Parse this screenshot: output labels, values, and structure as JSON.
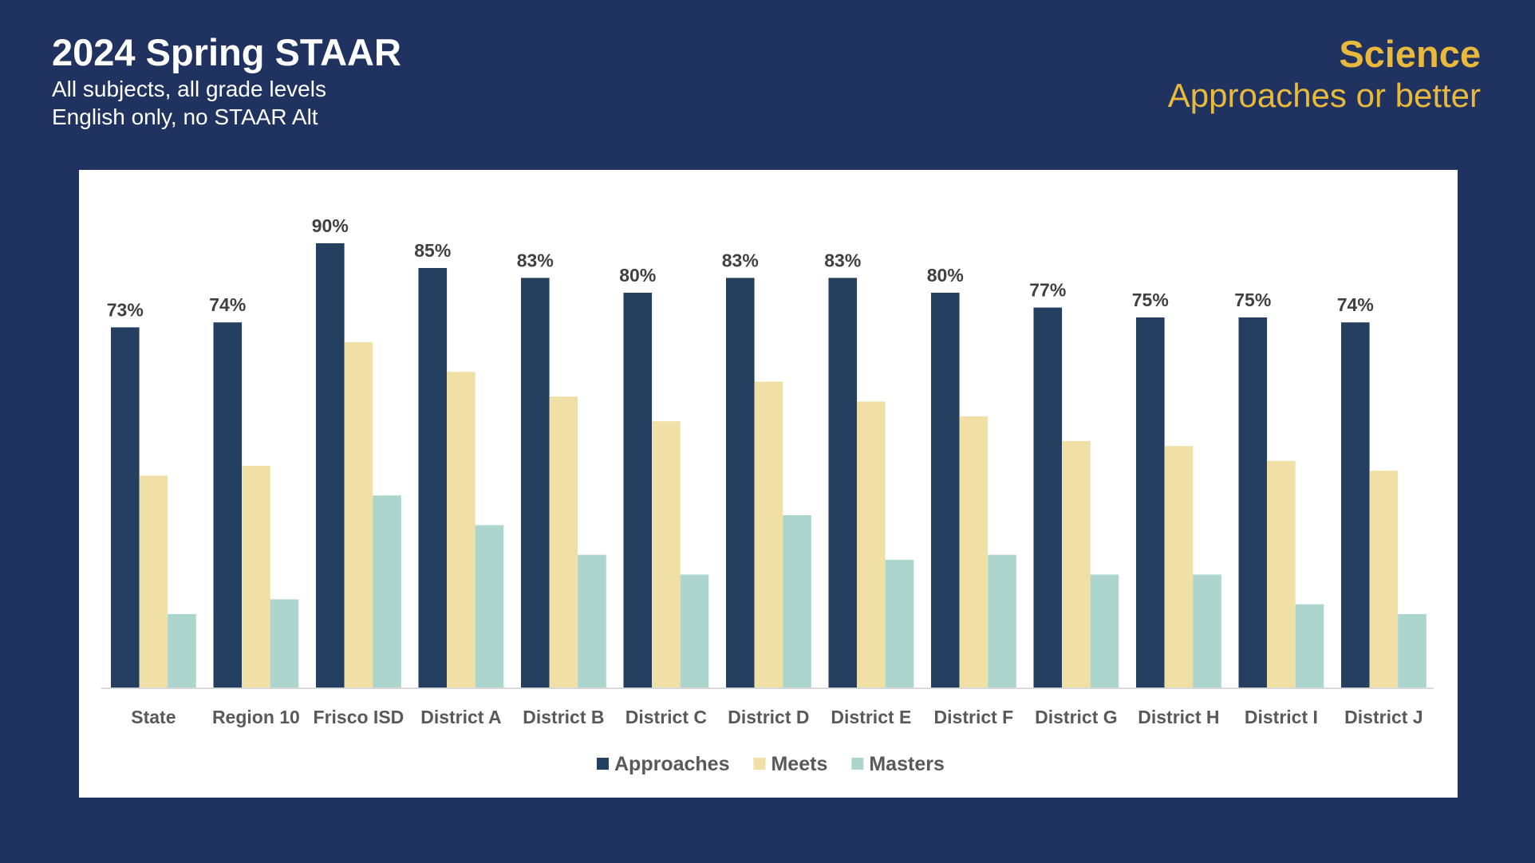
{
  "header": {
    "title": "2024 Spring STAAR",
    "subtitle1": "All subjects, all grade levels",
    "subtitle2": "English only, no STAAR Alt",
    "subject": "Science",
    "measure": "Approaches or better"
  },
  "chart_data": {
    "type": "bar",
    "categories": [
      "State",
      "Region 10",
      "Frisco ISD",
      "District A",
      "District B",
      "District C",
      "District D",
      "District E",
      "District F",
      "District G",
      "District H",
      "District I",
      "District J"
    ],
    "series": [
      {
        "name": "Approaches",
        "color": "#243f60",
        "values": [
          73,
          74,
          90,
          85,
          83,
          80,
          83,
          83,
          80,
          77,
          75,
          75,
          74
        ],
        "labels": [
          "73%",
          "74%",
          "90%",
          "85%",
          "83%",
          "80%",
          "83%",
          "83%",
          "80%",
          "77%",
          "75%",
          "75%",
          "74%"
        ]
      },
      {
        "name": "Meets",
        "color": "#f1e0a6",
        "values": [
          43,
          45,
          70,
          64,
          59,
          54,
          62,
          58,
          55,
          50,
          49,
          46,
          44
        ]
      },
      {
        "name": "Masters",
        "color": "#acd5cd",
        "values": [
          15,
          18,
          39,
          33,
          27,
          23,
          35,
          26,
          27,
          23,
          23,
          17,
          15
        ]
      }
    ],
    "ylim": [
      0,
      100
    ],
    "grid": false,
    "legend": "bottom"
  }
}
